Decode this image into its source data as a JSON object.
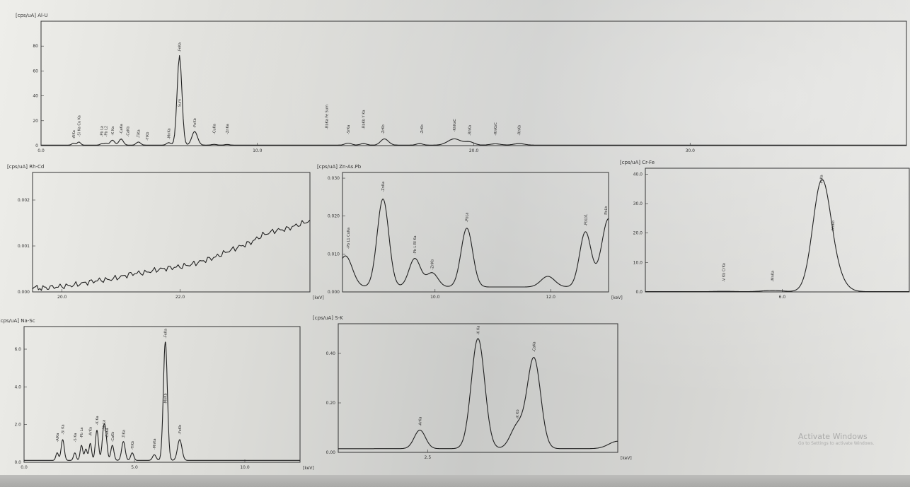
{
  "chart_data": [
    {
      "id": "al-u",
      "type": "line",
      "title": "[cps/uA] Al-U",
      "xlim": [
        0,
        40
      ],
      "ylim": [
        0,
        100
      ],
      "xticks": [
        {
          "v": 0,
          "t": "0.0"
        },
        {
          "v": 10,
          "t": "10.0"
        },
        {
          "v": 20,
          "t": "20.0"
        },
        {
          "v": 30,
          "t": "30.0"
        }
      ],
      "yticks": [
        {
          "v": 0,
          "t": "0"
        },
        {
          "v": 20,
          "t": "20"
        },
        {
          "v": 40,
          "t": "40"
        },
        {
          "v": 60,
          "t": "60"
        },
        {
          "v": 80,
          "t": "80"
        }
      ],
      "xlabel": "keV",
      "baseline": 0.4,
      "peaks": [
        [
          1.5,
          1.5,
          0.08
        ],
        [
          1.75,
          2.5,
          0.08
        ],
        [
          2.8,
          1,
          0.08
        ],
        [
          3.0,
          1.5,
          0.08
        ],
        [
          3.3,
          4,
          0.1
        ],
        [
          3.7,
          5,
          0.1
        ],
        [
          4.5,
          2.5,
          0.1
        ],
        [
          5.9,
          2,
          0.1
        ],
        [
          6.4,
          72,
          0.11
        ],
        [
          7.1,
          11,
          0.13
        ],
        [
          8.0,
          0.6,
          0.12
        ],
        [
          8.6,
          0.5,
          0.12
        ],
        [
          14.2,
          1.6,
          0.15
        ],
        [
          14.9,
          1.2,
          0.15
        ],
        [
          15.8,
          1.2,
          0.15
        ],
        [
          15.9,
          4,
          0.18
        ],
        [
          17.5,
          1.2,
          0.15
        ],
        [
          19.1,
          5,
          0.3
        ],
        [
          19.8,
          2.5,
          0.22
        ],
        [
          21.0,
          1,
          0.25
        ],
        [
          22.1,
          1.2,
          0.25
        ]
      ],
      "peak_labels": [
        {
          "x": 1.5,
          "y": 4,
          "t": "-AlKa"
        },
        {
          "x": 1.75,
          "y": 6,
          "t": "-Si Ka Cu Ka"
        },
        {
          "x": 2.8,
          "y": 6,
          "t": "-Pb La"
        },
        {
          "x": 3.0,
          "y": 6,
          "t": "-Pb L2"
        },
        {
          "x": 3.3,
          "y": 7,
          "t": "-K Ka"
        },
        {
          "x": 3.7,
          "y": 8,
          "t": "-CaKa"
        },
        {
          "x": 4.0,
          "y": 6,
          "t": "-CaKb"
        },
        {
          "x": 4.5,
          "y": 5,
          "t": "-TiKa"
        },
        {
          "x": 4.9,
          "y": 3,
          "t": "-TiKb"
        },
        {
          "x": 5.9,
          "y": 4,
          "t": "-MnKa"
        },
        {
          "x": 6.4,
          "y": 74,
          "t": "-FeKa"
        },
        {
          "x": 6.4,
          "y": 30,
          "t": "Sum"
        },
        {
          "x": 7.1,
          "y": 13,
          "t": "-FeKb"
        },
        {
          "x": 8.0,
          "y": 8,
          "t": "-CuKa"
        },
        {
          "x": 8.6,
          "y": 8,
          "t": "-ZnKa"
        },
        {
          "x": 13.2,
          "y": 12,
          "t": "-RbKa Fe Sum"
        },
        {
          "x": 14.2,
          "y": 8,
          "t": "-SrKa"
        },
        {
          "x": 14.9,
          "y": 12,
          "t": "-RbKb Y Ka"
        },
        {
          "x": 15.8,
          "y": 8,
          "t": "-ZrKb"
        },
        {
          "x": 17.6,
          "y": 8,
          "t": "-ZrKb"
        },
        {
          "x": 19.1,
          "y": 10,
          "t": "-RhKaC"
        },
        {
          "x": 19.8,
          "y": 7,
          "t": "-RhKa"
        },
        {
          "x": 21.0,
          "y": 7,
          "t": "-RhKbC"
        },
        {
          "x": 22.1,
          "y": 7,
          "t": "-RhKb"
        }
      ]
    },
    {
      "id": "rh-cd",
      "type": "line",
      "title": "[cps/uA] Rh-Cd",
      "xlim": [
        19.5,
        24.2
      ],
      "ylim": [
        0.0,
        0.0026
      ],
      "xticks": [
        {
          "v": 20,
          "t": "20.0"
        },
        {
          "v": 22,
          "t": "22.0"
        }
      ],
      "yticks": [
        {
          "v": 0,
          "t": "0.000"
        },
        {
          "v": 0.001,
          "t": "0.001"
        },
        {
          "v": 0.002,
          "t": "0.002"
        }
      ],
      "xlabel": "keV",
      "x": [
        19.5,
        19.65,
        19.8,
        20.0,
        20.2,
        20.4,
        20.6,
        20.8,
        21.0,
        21.2,
        21.4,
        21.6,
        21.8,
        22.0,
        22.2,
        22.4,
        22.6,
        22.8,
        23.0,
        23.2,
        23.4,
        23.6,
        23.8,
        24.0,
        24.2
      ],
      "y": [
        0.0001,
        8e-05,
        0.0001,
        0.00012,
        0.00015,
        0.0002,
        0.00025,
        0.00027,
        0.00033,
        0.0004,
        0.00042,
        0.00048,
        0.00052,
        0.00055,
        0.0006,
        0.00068,
        0.00076,
        0.00088,
        0.00098,
        0.00108,
        0.00124,
        0.00133,
        0.00137,
        0.00146,
        0.00155
      ]
    },
    {
      "id": "zn-as-pb",
      "type": "line",
      "title": "[cps/uA] Zn-As.Pb",
      "xlim": [
        8.4,
        13.0
      ],
      "ylim": [
        0.0,
        0.0315
      ],
      "xticks": [
        {
          "v": 10,
          "t": "10.0"
        },
        {
          "v": 12,
          "t": "12.0"
        }
      ],
      "yticks": [
        {
          "v": 0,
          "t": "0.000"
        },
        {
          "v": 0.01,
          "t": "0.010"
        },
        {
          "v": 0.02,
          "t": "0.020"
        },
        {
          "v": 0.03,
          "t": "0.030"
        }
      ],
      "xlabel": "keV",
      "baseline": 0.0013,
      "peaks": [
        [
          8.45,
          0.0082,
          0.12
        ],
        [
          9.1,
          0.0232,
          0.1
        ],
        [
          9.65,
          0.0075,
          0.1
        ],
        [
          9.95,
          0.0037,
          0.1
        ],
        [
          10.55,
          0.0155,
          0.1
        ],
        [
          11.95,
          0.0028,
          0.12
        ],
        [
          12.6,
          0.0145,
          0.1
        ],
        [
          13.0,
          0.018,
          0.12
        ]
      ],
      "peak_labels": [
        {
          "x": 8.5,
          "y": 0.011,
          "t": "-Pb L1 CuKa"
        },
        {
          "x": 9.1,
          "y": 0.026,
          "t": "-ZnKa"
        },
        {
          "x": 9.65,
          "y": 0.0095,
          "t": "-Pb L Bl Ka"
        },
        {
          "x": 9.95,
          "y": 0.0055,
          "t": "-ZnKb"
        },
        {
          "x": 10.55,
          "y": 0.018,
          "t": "-PbLa"
        },
        {
          "x": 12.6,
          "y": 0.017,
          "t": "-PbLb1"
        },
        {
          "x": 12.95,
          "y": 0.02,
          "t": "PbLb"
        }
      ]
    },
    {
      "id": "cr-fe",
      "type": "line",
      "title": "[cps/uA] Cr-Fe",
      "xlim": [
        4.6,
        7.3
      ],
      "ylim": [
        0,
        42
      ],
      "xticks": [
        {
          "v": 6,
          "t": "6.0"
        }
      ],
      "yticks": [
        {
          "v": 0,
          "t": "0.0"
        },
        {
          "v": 10,
          "t": "10.0"
        },
        {
          "v": 20,
          "t": "20.0"
        },
        {
          "v": 30,
          "t": "30.0"
        },
        {
          "v": 40,
          "t": "40.0"
        }
      ],
      "xlabel": "keV",
      "baseline": 0.1,
      "peaks": [
        [
          5.4,
          0.1,
          0.1
        ],
        [
          5.9,
          0.4,
          0.1
        ],
        [
          6.4,
          35,
          0.09
        ],
        [
          6.52,
          6,
          0.1
        ]
      ],
      "peak_labels": [
        {
          "x": 5.4,
          "y": 3,
          "t": "-V Kb CrKa"
        },
        {
          "x": 5.9,
          "y": 3,
          "t": "-MnKa"
        },
        {
          "x": 6.4,
          "y": 36,
          "t": "-FeKa"
        },
        {
          "x": 6.52,
          "y": 20,
          "t": "-MnKb"
        }
      ]
    },
    {
      "id": "na-sc",
      "type": "line",
      "title": "[cps/uA] Na-Sc",
      "xlim": [
        0,
        12.5
      ],
      "ylim": [
        0,
        7.2
      ],
      "xticks": [
        {
          "v": 0,
          "t": "0.0"
        },
        {
          "v": 5,
          "t": "5.0"
        },
        {
          "v": 10,
          "t": "10.0"
        }
      ],
      "yticks": [
        {
          "v": 0,
          "t": "0.0"
        },
        {
          "v": 2,
          "t": "2.0"
        },
        {
          "v": 4,
          "t": "4.0"
        },
        {
          "v": 6,
          "t": "6.0"
        }
      ],
      "xlabel": "keV",
      "baseline": 0.1,
      "peaks": [
        [
          1.5,
          0.4,
          0.06
        ],
        [
          1.75,
          1.1,
          0.07
        ],
        [
          2.3,
          0.4,
          0.06
        ],
        [
          2.6,
          0.8,
          0.06
        ],
        [
          2.8,
          0.6,
          0.06
        ],
        [
          3.0,
          0.9,
          0.06
        ],
        [
          3.3,
          1.6,
          0.07
        ],
        [
          3.6,
          1.4,
          0.07
        ],
        [
          3.7,
          1.1,
          0.07
        ],
        [
          4.0,
          0.8,
          0.07
        ],
        [
          4.5,
          1.0,
          0.08
        ],
        [
          4.9,
          0.4,
          0.07
        ],
        [
          5.9,
          0.3,
          0.08
        ],
        [
          6.4,
          6.3,
          0.09
        ],
        [
          7.05,
          1.1,
          0.1
        ]
      ],
      "peak_labels": [
        {
          "x": 1.5,
          "y": 1,
          "t": "-AlKa"
        },
        {
          "x": 1.75,
          "y": 1.4,
          "t": "-Si Ka"
        },
        {
          "x": 2.3,
          "y": 1,
          "t": "-S Ka"
        },
        {
          "x": 2.6,
          "y": 1.2,
          "t": "-Pb La"
        },
        {
          "x": 3.0,
          "y": 1.3,
          "t": "-ArKa"
        },
        {
          "x": 3.3,
          "y": 1.9,
          "t": "-K Ka"
        },
        {
          "x": 3.6,
          "y": 1.6,
          "t": "-Sb La"
        },
        {
          "x": 3.75,
          "y": 1.2,
          "t": "-CaKa"
        },
        {
          "x": 4.0,
          "y": 1,
          "t": "-CaKb"
        },
        {
          "x": 4.5,
          "y": 1.2,
          "t": "-TiKa"
        },
        {
          "x": 4.9,
          "y": 0.6,
          "t": "-TiKb"
        },
        {
          "x": 5.9,
          "y": 0.6,
          "t": "-MnKa"
        },
        {
          "x": 6.4,
          "y": 6.5,
          "t": "-FeKa"
        },
        {
          "x": 6.4,
          "y": 3,
          "t": "-MnKb"
        },
        {
          "x": 7.05,
          "y": 1.4,
          "t": "-FeKb"
        }
      ]
    },
    {
      "id": "s-k",
      "type": "line",
      "title": "[cps/uA] S-K",
      "xlim": [
        1.7,
        4.2
      ],
      "ylim": [
        0,
        0.52
      ],
      "xticks": [
        {
          "v": 2.5,
          "t": "2.5"
        }
      ],
      "yticks": [
        {
          "v": 0,
          "t": "0.00"
        },
        {
          "v": 0.2,
          "t": "0.20"
        },
        {
          "v": 0.4,
          "t": "0.40"
        }
      ],
      "xlabel": "keV",
      "baseline": 0.015,
      "peaks": [
        [
          2.43,
          0.075,
          0.05
        ],
        [
          2.95,
          0.445,
          0.06
        ],
        [
          3.3,
          0.09,
          0.06
        ],
        [
          3.45,
          0.365,
          0.06
        ],
        [
          4.2,
          0.03,
          0.08
        ]
      ],
      "peak_labels": [
        {
          "x": 2.43,
          "y": 0.1,
          "t": "-ArKa"
        },
        {
          "x": 2.95,
          "y": 0.47,
          "t": "-K Ka"
        },
        {
          "x": 3.3,
          "y": 0.13,
          "t": "-K Kb"
        },
        {
          "x": 3.45,
          "y": 0.4,
          "t": "-CaKa"
        }
      ]
    }
  ],
  "watermark": {
    "title": "Activate Windows",
    "subtitle": "Go to Settings to activate Windows."
  }
}
